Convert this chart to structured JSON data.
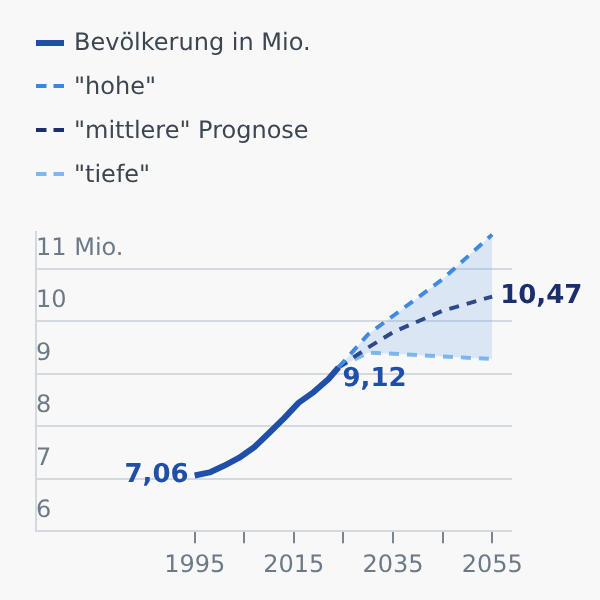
{
  "chart_data": {
    "type": "line",
    "legend": "top left",
    "marker": "none",
    "grid": "y",
    "xlim": [
      1963,
      2059
    ],
    "ylim": [
      6,
      11.7
    ],
    "xticks": [
      1995,
      {
        "value": 2005,
        "label": null
      },
      2015,
      {
        "value": 2025,
        "label": null
      },
      2035,
      {
        "value": 2045,
        "label": null
      },
      2055
    ],
    "yticks": [
      6,
      7,
      8,
      9,
      10,
      {
        "value": 11,
        "label": "11 Mio."
      }
    ],
    "series": [
      {
        "name": "Bevölkerung in Mio.",
        "color": "#1f4fa8",
        "line_style": "solid",
        "x": [
          1995,
          1998,
          2001,
          2004,
          2007,
          2010,
          2013,
          2016,
          2019,
          2022,
          2024
        ],
        "values": [
          7.06,
          7.12,
          7.25,
          7.4,
          7.6,
          7.87,
          8.15,
          8.45,
          8.65,
          8.9,
          9.12
        ],
        "value_labels": [
          "7,06",
          null,
          null,
          null,
          null,
          null,
          null,
          null,
          null,
          null,
          "9,12"
        ]
      },
      {
        "name": "\"hohe\"",
        "color": "#3a86e0",
        "line_style": "dashed",
        "x": [
          2024,
          2030,
          2035,
          2045,
          2055
        ],
        "values": [
          9.12,
          9.75,
          10.1,
          10.8,
          11.65
        ]
      },
      {
        "name": "\"mittlere\" Prognose",
        "color": "#1a2f6b",
        "line_style": "dashed",
        "x": [
          2024,
          2030,
          2035,
          2045,
          2055
        ],
        "values": [
          9.12,
          9.5,
          9.79,
          10.2,
          10.47
        ],
        "lower": [
          9.12,
          9.4,
          9.38,
          9.33,
          9.28
        ],
        "upper": [
          9.12,
          9.75,
          10.1,
          10.8,
          11.65
        ],
        "value_labels": [
          null,
          null,
          null,
          null,
          "10,47"
        ]
      },
      {
        "name": "\"tiefe\"",
        "color": "#7db8f0",
        "line_style": "dashed",
        "x": [
          2024,
          2030,
          2035,
          2045,
          2055
        ],
        "values": [
          9.12,
          9.4,
          9.38,
          9.33,
          9.28
        ]
      }
    ]
  }
}
